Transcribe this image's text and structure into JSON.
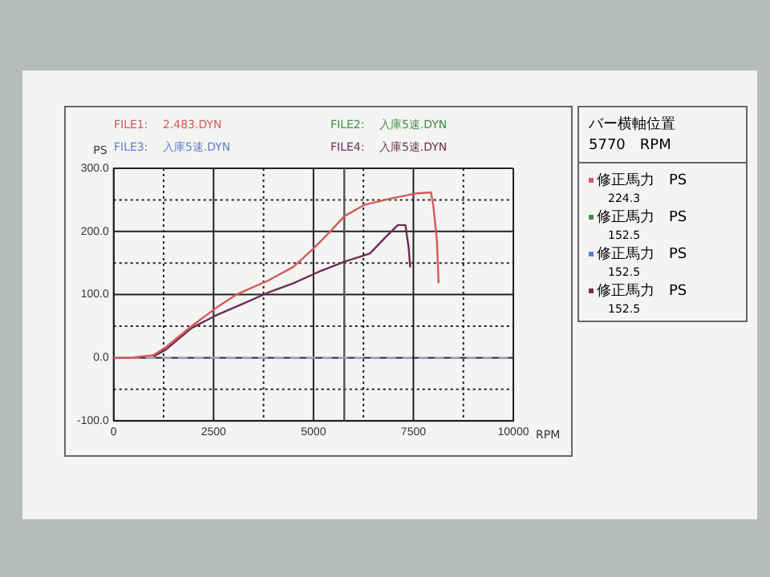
{
  "chart_data": {
    "type": "line",
    "xlabel": "RPM",
    "ylabel": "PS",
    "xlim": [
      0,
      10000
    ],
    "xticks": [
      0,
      {
        "value": 1250,
        "label": null
      },
      2500,
      {
        "value": 3750,
        "label": null
      },
      5000,
      {
        "value": 6250,
        "label": null
      },
      7500,
      {
        "value": 8750,
        "label": null
      },
      10000
    ],
    "ylim": [
      -100,
      300
    ],
    "yticks": [
      {
        "value": -100,
        "label": "-100.0"
      },
      {
        "value": -50,
        "label": null
      },
      {
        "value": 0,
        "label": "0.0"
      },
      {
        "value": 50,
        "label": null
      },
      {
        "value": 100,
        "label": "100.0"
      },
      {
        "value": 150,
        "label": null
      },
      {
        "value": 200,
        "label": "200.0"
      },
      {
        "value": 250,
        "label": null
      },
      {
        "value": 300,
        "label": "300.0"
      }
    ],
    "grid": true,
    "legend": "top",
    "marker": "none",
    "line_style": "solid",
    "series": [
      {
        "name": "FILE1:　 2.483.DYN",
        "color": "#d65a5a",
        "x": [
          0,
          420,
          990,
          1310,
          1950,
          2590,
          3100,
          3860,
          4500,
          5000,
          5390,
          5770,
          6270,
          6920,
          7550,
          7940,
          8000,
          8090,
          8130
        ],
        "values": [
          0,
          0,
          4,
          17,
          50,
          80,
          101,
          122,
          144,
          173,
          198,
          224,
          242,
          252,
          260,
          262,
          240,
          184,
          118
        ]
      },
      {
        "name": "FILE2:　 入庫5速.DYN",
        "color": "#3f8f4a"
      },
      {
        "name": "FILE3:　 入庫5速.DYN",
        "color": "#5b7fd0"
      },
      {
        "name": "FILE4:　 入庫5速.DYN",
        "color": "#6b2e55",
        "x": [
          990,
          1310,
          1950,
          2590,
          3220,
          3860,
          4500,
          5130,
          5770,
          6410,
          6790,
          7110,
          7300,
          7380,
          7420
        ],
        "values": [
          2,
          13,
          47,
          68,
          85,
          103,
          118,
          136,
          152,
          165,
          190,
          210,
          210,
          175,
          143
        ]
      }
    ],
    "ref_lines": [
      {
        "axis": "x",
        "value": 5770,
        "color": "#555555",
        "line_style": "solid"
      },
      {
        "axis": "y",
        "value": 0,
        "color": "#a9a9d8",
        "line_style": "dashed"
      }
    ],
    "annotations": [
      "バー横軸位置",
      "5770　RPM",
      "修正馬力　PS",
      "224.3",
      "修正馬力　PS",
      "152.5",
      "修正馬力　PS",
      "152.5",
      "修正馬力　PS",
      "152.5"
    ]
  }
}
